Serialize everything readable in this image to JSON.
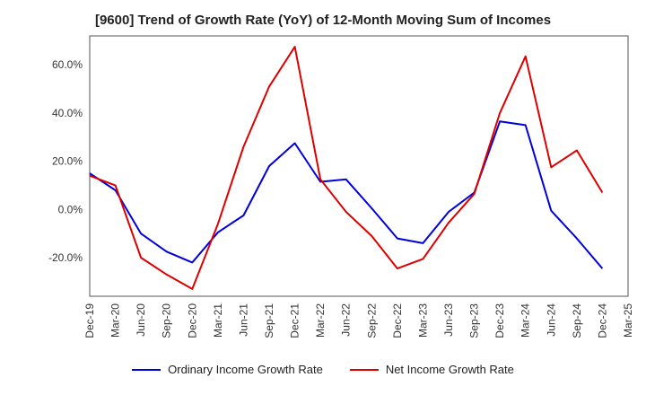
{
  "chart_data": {
    "type": "line",
    "title": "[9600]  Trend of Growth Rate (YoY) of 12-Month Moving Sum of Incomes",
    "x": [
      "Dec-19",
      "Mar-20",
      "Jun-20",
      "Sep-20",
      "Dec-20",
      "Mar-21",
      "Jun-21",
      "Sep-21",
      "Dec-21",
      "Mar-22",
      "Jun-22",
      "Sep-22",
      "Dec-22",
      "Mar-23",
      "Jun-23",
      "Sep-23",
      "Dec-23",
      "Mar-24",
      "Jun-24",
      "Sep-24",
      "Dec-24",
      "Mar-25"
    ],
    "ylim": [
      -36,
      72
    ],
    "yticks": [
      -20,
      0,
      20,
      40,
      60
    ],
    "ytick_labels": [
      "-20.0%",
      "0.0%",
      "20.0%",
      "40.0%",
      "60.0%"
    ],
    "grid": true,
    "legend_position": "bottom",
    "series": [
      {
        "name": "Ordinary Income Growth Rate",
        "color": "#0000dd",
        "values": [
          15.0,
          8.0,
          -10.0,
          -17.5,
          -22.0,
          -9.5,
          -2.5,
          18.0,
          27.5,
          11.5,
          12.5,
          0.5,
          -12.0,
          -14.0,
          -1.0,
          7.0,
          36.5,
          35.0,
          -0.5,
          -12.0,
          -24.5,
          null
        ]
      },
      {
        "name": "Net Income Growth Rate",
        "color": "#dd0000",
        "values": [
          14.0,
          10.0,
          -20.0,
          -27.0,
          -33.0,
          -6.0,
          26.0,
          51.0,
          67.5,
          12.5,
          -1.0,
          -11.0,
          -24.5,
          -20.5,
          -5.5,
          6.5,
          40.0,
          63.5,
          17.5,
          24.5,
          7.0,
          null
        ]
      }
    ]
  }
}
